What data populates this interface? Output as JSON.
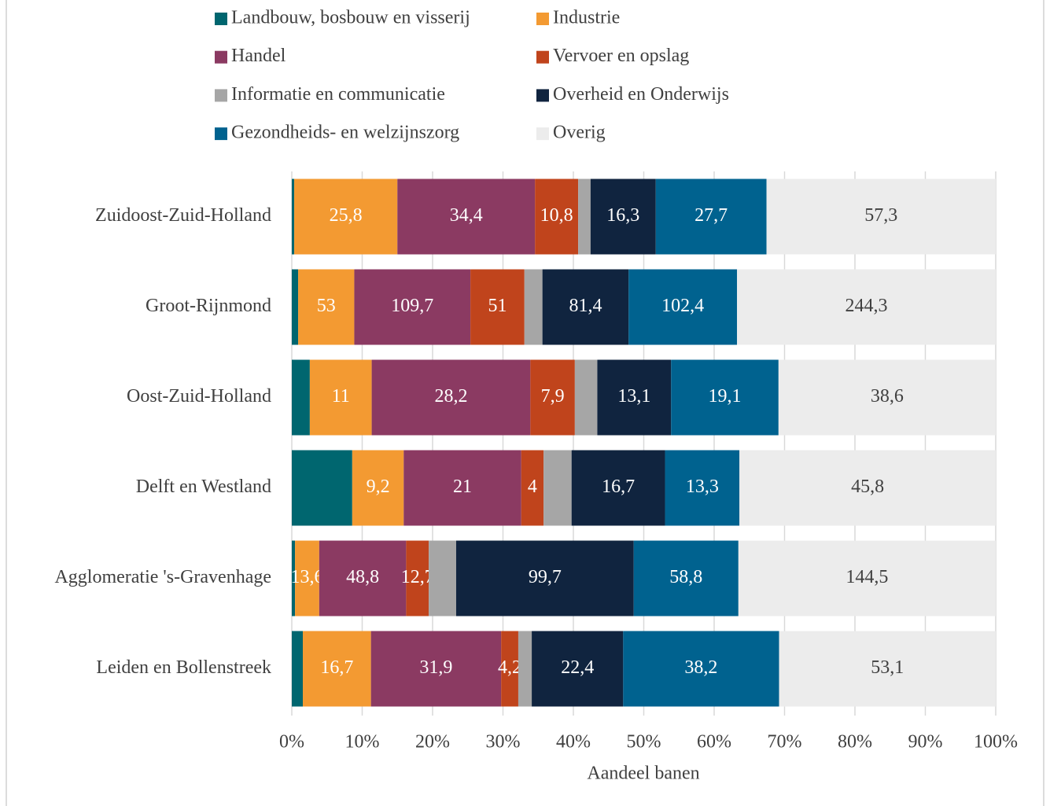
{
  "chart_data": {
    "type": "bar",
    "orientation": "horizontal",
    "stacking": "percent",
    "categories": [
      "Zuidoost-Zuid-Holland",
      "Groot-Rijnmond",
      "Oost-Zuid-Holland",
      "Delft en Westland",
      "Agglomeratie 's-Gravenhage",
      "Leiden en Bollenstreek"
    ],
    "series": [
      {
        "name": "Landbouw, bosbouw en visserij",
        "color": "#00666f",
        "values": [
          0.6,
          6,
          3.2,
          10.8,
          1.8,
          2.7
        ]
      },
      {
        "name": "Industrie",
        "color": "#f39a32",
        "values": [
          25.8,
          53,
          11,
          9.2,
          13.6,
          16.7
        ],
        "value_labels": [
          "25,8",
          "53",
          "11",
          "9,2",
          "13,6",
          "16,7"
        ]
      },
      {
        "name": "Handel",
        "color": "#8b3a62",
        "values": [
          34.4,
          109.7,
          28.2,
          21,
          48.8,
          31.9
        ],
        "value_labels": [
          "34,4",
          "109,7",
          "28,2",
          "21",
          "48,8",
          "31,9"
        ]
      },
      {
        "name": "Vervoer en opslag",
        "color": "#c0441c",
        "values": [
          10.8,
          51,
          7.9,
          4,
          12.7,
          4.2
        ],
        "value_labels": [
          "10,8",
          "51",
          "7,9",
          "4",
          "12,7",
          "4,2"
        ]
      },
      {
        "name": "Informatie en communicatie",
        "color": "#a6a6a6",
        "values": [
          3.1,
          17,
          4.0,
          5.0,
          15.4,
          3.3
        ]
      },
      {
        "name": "Overheid en Onderwijs",
        "color": "#10243f",
        "values": [
          16.3,
          81.4,
          13.1,
          16.7,
          99.7,
          22.4
        ],
        "value_labels": [
          "16,3",
          "81,4",
          "13,1",
          "16,7",
          "99,7",
          "22,4"
        ]
      },
      {
        "name": "Gezondheids- en welzijnszorg",
        "color": "#00628f",
        "values": [
          27.7,
          102.4,
          19.1,
          13.3,
          58.8,
          38.2
        ],
        "value_labels": [
          "27,7",
          "102,4",
          "19,1",
          "13,3",
          "58,8",
          "38,2"
        ]
      },
      {
        "name": "Overig",
        "color": "#ececec",
        "values": [
          57.3,
          244.3,
          38.6,
          45.8,
          144.5,
          53.1
        ],
        "value_labels": [
          "57,3",
          "244,3",
          "38,6",
          "45,8",
          "144,5",
          "53,1"
        ]
      }
    ],
    "x_label": "Aandeel banen",
    "xlim": [
      0,
      100
    ],
    "xticks": [
      {
        "value": 0,
        "label": "0%"
      },
      {
        "value": 10,
        "label": "10%"
      },
      {
        "value": 20,
        "label": "20%"
      },
      {
        "value": 30,
        "label": "30%"
      },
      {
        "value": 40,
        "label": "40%"
      },
      {
        "value": 50,
        "label": "50%"
      },
      {
        "value": 60,
        "label": "60%"
      },
      {
        "value": 70,
        "label": "70%"
      },
      {
        "value": 80,
        "label": "80%"
      },
      {
        "value": 90,
        "label": "90%"
      },
      {
        "value": 100,
        "label": "100%"
      }
    ],
    "grid": true,
    "legend": "top"
  }
}
